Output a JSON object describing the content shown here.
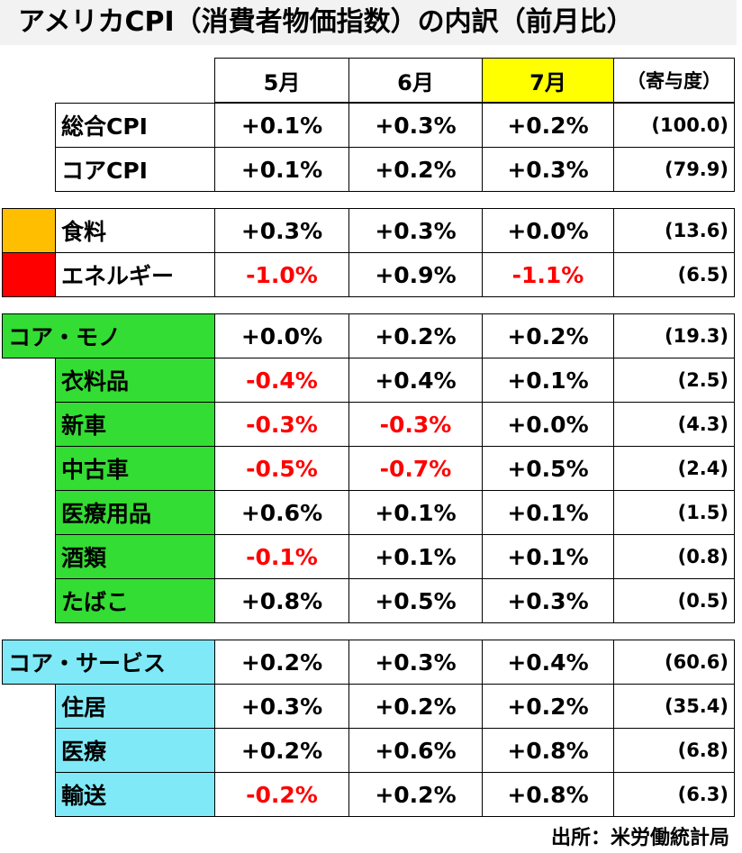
{
  "title": "アメリカCPI（消費者物価指数）の内訳（前月比）",
  "header": {
    "may": "5月",
    "jun": "6月",
    "jul": "7月",
    "weight": "（寄与度）"
  },
  "rows": [
    {
      "label": "総合CPI",
      "may": "+0.1%",
      "jun": "+0.3%",
      "jul": "+0.2%",
      "weight": "(100.0)"
    },
    {
      "label": "コアCPI",
      "may": "+0.1%",
      "jun": "+0.2%",
      "jul": "+0.3%",
      "weight": "(79.9)"
    },
    {
      "label": "食料",
      "may": "+0.3%",
      "jun": "+0.3%",
      "jul": "+0.0%",
      "weight": "(13.6)"
    },
    {
      "label": "エネルギー",
      "may": "-1.0%",
      "jun": "+0.9%",
      "jul": "-1.1%",
      "weight": "(6.5)"
    },
    {
      "label": "コア・モノ",
      "may": "+0.0%",
      "jun": "+0.2%",
      "jul": "+0.2%",
      "weight": "(19.3)"
    },
    {
      "label": "衣料品",
      "may": "-0.4%",
      "jun": "+0.4%",
      "jul": "+0.1%",
      "weight": "(2.5)"
    },
    {
      "label": "新車",
      "may": "-0.3%",
      "jun": "-0.3%",
      "jul": "+0.0%",
      "weight": "(4.3)"
    },
    {
      "label": "中古車",
      "may": "-0.5%",
      "jun": "-0.7%",
      "jul": "+0.5%",
      "weight": "(2.4)"
    },
    {
      "label": "医療用品",
      "may": "+0.6%",
      "jun": "+0.1%",
      "jul": "+0.1%",
      "weight": "(1.5)"
    },
    {
      "label": "酒類",
      "may": "-0.1%",
      "jun": "+0.1%",
      "jul": "+0.1%",
      "weight": "(0.8)"
    },
    {
      "label": "たばこ",
      "may": "+0.8%",
      "jun": "+0.5%",
      "jul": "+0.3%",
      "weight": "(0.5)"
    },
    {
      "label": "コア・サービス",
      "may": "+0.2%",
      "jun": "+0.3%",
      "jul": "+0.4%",
      "weight": "(60.6)"
    },
    {
      "label": "住居",
      "may": "+0.3%",
      "jun": "+0.2%",
      "jul": "+0.2%",
      "weight": "(35.4)"
    },
    {
      "label": "医療",
      "may": "+0.2%",
      "jun": "+0.6%",
      "jul": "+0.8%",
      "weight": "(6.8)"
    },
    {
      "label": "輸送",
      "may": "-0.2%",
      "jun": "+0.2%",
      "jul": "+0.8%",
      "weight": "(6.3)"
    }
  ],
  "colors": {
    "highlight": "#ffff00",
    "goods": "#33dd33",
    "services": "#7fe9f7",
    "food": "#ffbf00",
    "energy": "#ff0000",
    "negative": "#ff0000"
  },
  "source": "出所：米労働統計局"
}
